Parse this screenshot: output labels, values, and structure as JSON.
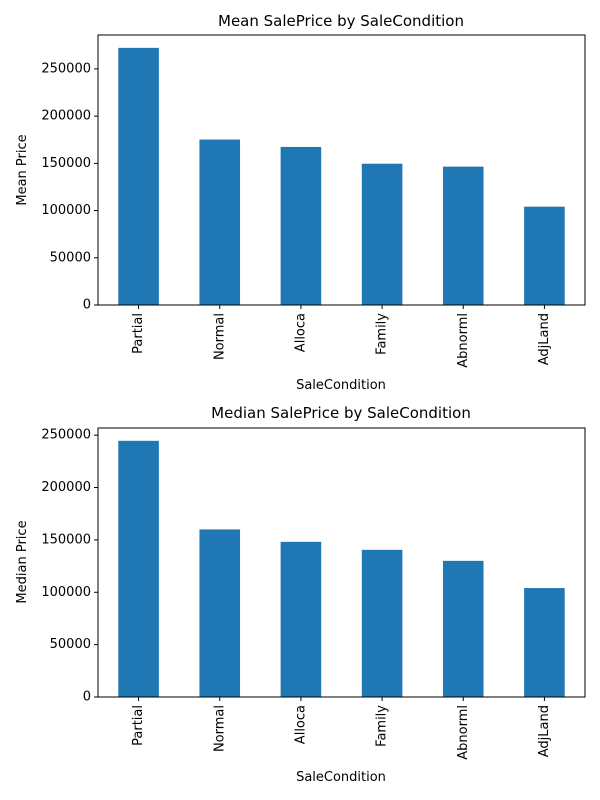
{
  "chart_data": [
    {
      "type": "bar",
      "title": "Mean SalePrice by SaleCondition",
      "xlabel": "SaleCondition",
      "ylabel": "Mean Price",
      "categories": [
        "Partial",
        "Normal",
        "Alloca",
        "Family",
        "Abnorml",
        "AdjLand"
      ],
      "values": [
        272292,
        175202,
        167377,
        149600,
        146527,
        104125
      ],
      "yticks": [
        0,
        50000,
        100000,
        150000,
        200000,
        250000
      ],
      "ylim": [
        0,
        285906
      ],
      "color": "#1f77b4",
      "grid": false,
      "legend": "none"
    },
    {
      "type": "bar",
      "title": "Median SalePrice by SaleCondition",
      "xlabel": "SaleCondition",
      "ylabel": "Median Price",
      "categories": [
        "Partial",
        "Normal",
        "Alloca",
        "Family",
        "Abnorml",
        "AdjLand"
      ],
      "values": [
        244600,
        160000,
        148145,
        140500,
        130000,
        104000
      ],
      "yticks": [
        0,
        50000,
        100000,
        150000,
        200000,
        250000
      ],
      "ylim": [
        0,
        256830
      ],
      "color": "#1f77b4",
      "grid": false,
      "legend": "none"
    }
  ]
}
